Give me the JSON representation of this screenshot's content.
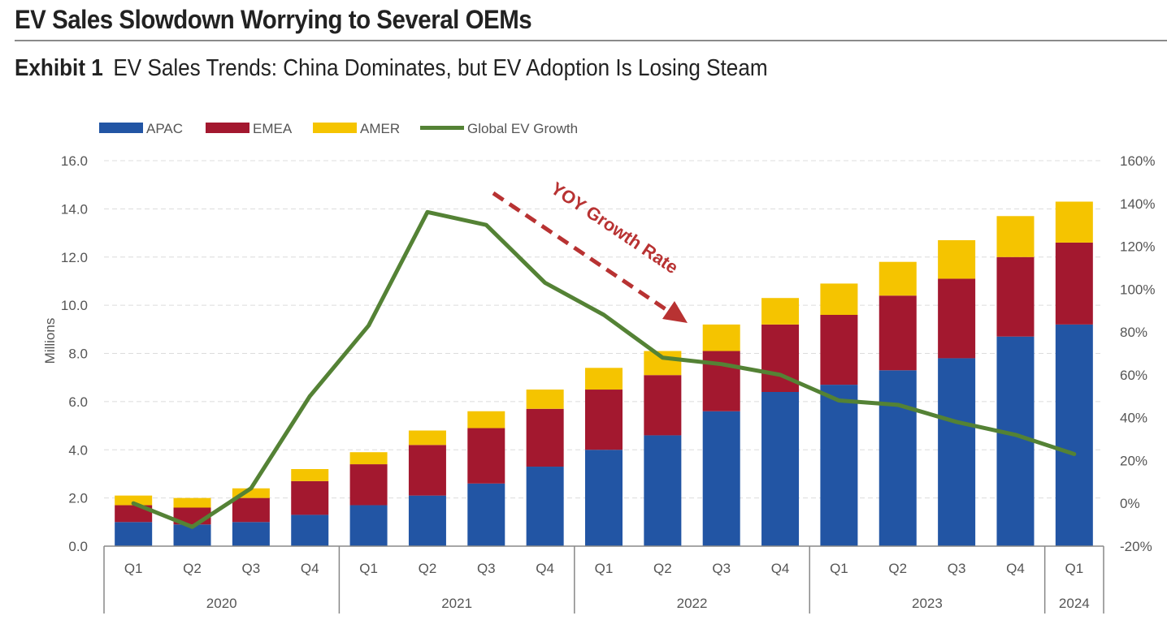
{
  "header": {
    "title": "EV Sales Slowdown Worrying to Several OEMs",
    "exhibit_label": "Exhibit 1",
    "exhibit_title": "EV Sales Trends: China Dominates, but EV Adoption Is Losing Steam"
  },
  "colors": {
    "APAC": "#2255a4",
    "EMEA": "#a3182f",
    "AMER": "#f5c400",
    "growth": "#548235",
    "annotation": "#b83232",
    "grid": "#dcdcdc",
    "axis": "#888888"
  },
  "chart_data": {
    "type": "bar",
    "stacked": true,
    "ylabel": "Millions",
    "ylim": [
      0,
      16
    ],
    "y_ticks": [
      "0.0",
      "2.0",
      "4.0",
      "6.0",
      "8.0",
      "10.0",
      "12.0",
      "14.0",
      "16.0"
    ],
    "y2lim": [
      -20,
      160
    ],
    "y2_ticks": [
      "-20%",
      "0%",
      "20%",
      "40%",
      "60%",
      "80%",
      "100%",
      "120%",
      "140%",
      "160%"
    ],
    "categories": [
      "Q1",
      "Q2",
      "Q3",
      "Q4",
      "Q1",
      "Q2",
      "Q3",
      "Q4",
      "Q1",
      "Q2",
      "Q3",
      "Q4",
      "Q1",
      "Q2",
      "Q3",
      "Q4",
      "Q1"
    ],
    "years": [
      {
        "label": "2020",
        "count": 4
      },
      {
        "label": "2021",
        "count": 4
      },
      {
        "label": "2022",
        "count": 4
      },
      {
        "label": "2023",
        "count": 4
      },
      {
        "label": "2024",
        "count": 1
      }
    ],
    "series": [
      {
        "name": "APAC",
        "values": [
          1.0,
          0.9,
          1.0,
          1.3,
          1.7,
          2.1,
          2.6,
          3.3,
          4.0,
          4.6,
          5.6,
          6.4,
          6.7,
          7.3,
          7.8,
          8.7,
          9.2
        ]
      },
      {
        "name": "EMEA",
        "values": [
          0.7,
          0.7,
          1.0,
          1.4,
          1.7,
          2.1,
          2.3,
          2.4,
          2.5,
          2.5,
          2.5,
          2.8,
          2.9,
          3.1,
          3.3,
          3.3,
          3.4
        ]
      },
      {
        "name": "AMER",
        "values": [
          0.4,
          0.4,
          0.4,
          0.5,
          0.5,
          0.6,
          0.7,
          0.8,
          0.9,
          1.0,
          1.1,
          1.1,
          1.3,
          1.4,
          1.6,
          1.7,
          1.7
        ]
      }
    ],
    "line_series": {
      "name": "Global EV Growth",
      "axis": "right",
      "values": [
        0,
        -11,
        7,
        50,
        83,
        136,
        130,
        103,
        88,
        68,
        65,
        60,
        48,
        46,
        38,
        32,
        23
      ]
    },
    "annotations": [
      {
        "text": "YOY Growth Rate"
      }
    ],
    "legend_position": "top-left",
    "grid": true
  }
}
